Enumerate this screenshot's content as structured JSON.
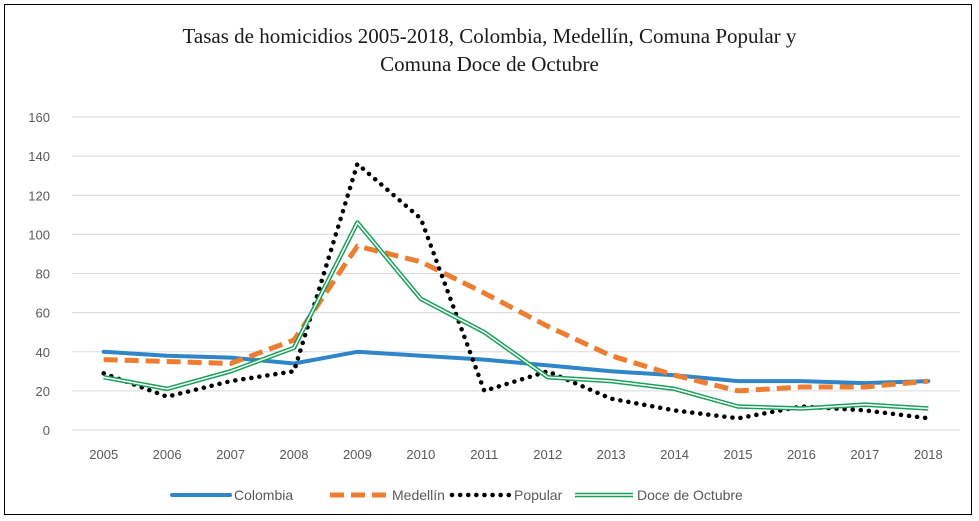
{
  "chart_data": {
    "type": "line",
    "title_lines": [
      "Tasas de homicidios 2005-2018, Colombia, Medellín, Comuna Popular y",
      "Comuna Doce de Octubre"
    ],
    "x": [
      "2005",
      "2006",
      "2007",
      "2008",
      "2009",
      "2010",
      "2011",
      "2012",
      "2013",
      "2014",
      "2015",
      "2016",
      "2017",
      "2018"
    ],
    "ylim": [
      0,
      160
    ],
    "yticks": [
      0,
      20,
      40,
      60,
      80,
      100,
      120,
      140,
      160
    ],
    "grid": true,
    "legend_position": "bottom",
    "series": [
      {
        "name": "Colombia",
        "style": "solid",
        "color": "#2e86c8",
        "values": [
          40,
          38,
          37,
          34,
          40,
          38,
          36,
          33,
          30,
          28,
          25,
          25,
          24,
          25
        ]
      },
      {
        "name": "Medellín",
        "style": "dashed",
        "color": "#ed7d31",
        "values": [
          36,
          35,
          34,
          46,
          94,
          86,
          70,
          53,
          38,
          28,
          20,
          22,
          22,
          25
        ]
      },
      {
        "name": "Popular",
        "style": "dotted",
        "color": "#000000",
        "values": [
          29,
          17,
          25,
          30,
          136,
          108,
          20,
          30,
          16,
          10,
          6,
          12,
          10,
          6
        ]
      },
      {
        "name": "Doce de Octubre",
        "style": "double",
        "color": "#1aa05a",
        "values": [
          27,
          21,
          30,
          42,
          106,
          67,
          50,
          27,
          25,
          21,
          12,
          11,
          13,
          11
        ]
      }
    ]
  }
}
